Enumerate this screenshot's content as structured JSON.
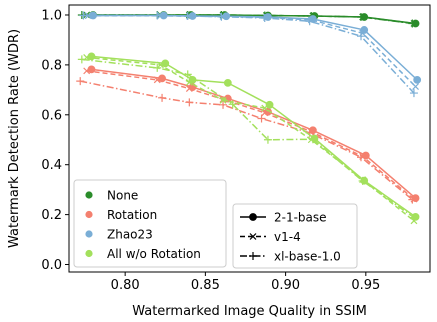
{
  "chart_data": {
    "type": "line",
    "xlabel": "Watermarked Image Quality in SSIM",
    "ylabel": "Watermark Detection Rate (WDR)",
    "xlim": [
      0.765,
      0.99
    ],
    "ylim": [
      -0.03,
      1.04
    ],
    "xticks": [
      0.8,
      0.85,
      0.9,
      0.95
    ],
    "xtick_labels": [
      "0.80",
      "0.85",
      "0.90",
      "0.95"
    ],
    "yticks": [
      0.0,
      0.2,
      0.4,
      0.6,
      0.8,
      1.0
    ],
    "ytick_labels": [
      "0.0",
      "0.2",
      "0.4",
      "0.6",
      "0.8",
      "1.0"
    ],
    "grid": false,
    "legend_placement": "lower-left",
    "method_legend": [
      {
        "label": "None",
        "color": "#2a8c2a"
      },
      {
        "label": "Rotation",
        "color": "#f4806f"
      },
      {
        "label": "Zhao23",
        "color": "#7aaed6"
      },
      {
        "label": "All w/o Rotation",
        "color": "#a3e05c"
      }
    ],
    "style_legend": [
      {
        "label": "2-1-base",
        "style": "solid",
        "marker": "dot"
      },
      {
        "label": "v1-4",
        "style": "dashed",
        "marker": "x"
      },
      {
        "label": "xl-base-1.0",
        "style": "dashdot",
        "marker": "plus"
      }
    ],
    "series": [
      {
        "method": "None",
        "model": "2-1-base",
        "color": "#2a8c2a",
        "x": [
          0.78,
          0.824,
          0.841,
          0.862,
          0.889,
          0.918,
          0.949,
          0.981
        ],
        "y": [
          1.0,
          1.0,
          1.0,
          1.0,
          0.998,
          0.996,
          0.992,
          0.966
        ]
      },
      {
        "method": "None",
        "model": "v1-4",
        "color": "#2a8c2a",
        "x": [
          0.776,
          0.822,
          0.84,
          0.861,
          0.888,
          0.917,
          0.948,
          0.98
        ],
        "y": [
          1.0,
          1.0,
          1.0,
          1.0,
          0.998,
          0.996,
          0.992,
          0.966
        ]
      },
      {
        "method": "None",
        "model": "xl-base-1.0",
        "color": "#2a8c2a",
        "x": [
          0.773,
          0.82,
          0.839,
          0.86,
          0.887,
          0.916,
          0.947,
          0.979
        ],
        "y": [
          1.0,
          1.0,
          1.0,
          1.0,
          0.998,
          0.996,
          0.992,
          0.966
        ]
      },
      {
        "method": "Rotation",
        "model": "2-1-base",
        "color": "#f4806f",
        "x": [
          0.779,
          0.823,
          0.842,
          0.864,
          0.889,
          0.917,
          0.95,
          0.981
        ],
        "y": [
          0.782,
          0.746,
          0.711,
          0.665,
          0.612,
          0.538,
          0.437,
          0.266
        ]
      },
      {
        "method": "Rotation",
        "model": "v1-4",
        "color": "#f4806f",
        "x": [
          0.776,
          0.82,
          0.84,
          0.861,
          0.887,
          0.916,
          0.948,
          0.98
        ],
        "y": [
          0.776,
          0.74,
          0.705,
          0.662,
          0.608,
          0.532,
          0.433,
          0.262
        ]
      },
      {
        "method": "Rotation",
        "model": "xl-base-1.0",
        "color": "#f4806f",
        "x": [
          0.772,
          0.823,
          0.84,
          0.861,
          0.885,
          0.915,
          0.947,
          0.979
        ],
        "y": [
          0.735,
          0.668,
          0.65,
          0.64,
          0.585,
          0.528,
          0.43,
          0.26
        ]
      },
      {
        "method": "Zhao23",
        "model": "2-1-base",
        "color": "#7aaed6",
        "x": [
          0.78,
          0.824,
          0.842,
          0.863,
          0.889,
          0.917,
          0.949,
          0.982
        ],
        "y": [
          0.998,
          0.998,
          0.996,
          0.995,
          0.992,
          0.984,
          0.94,
          0.74
        ]
      },
      {
        "method": "Zhao23",
        "model": "v1-4",
        "color": "#7aaed6",
        "x": [
          0.777,
          0.822,
          0.84,
          0.861,
          0.888,
          0.916,
          0.948,
          0.981
        ],
        "y": [
          0.997,
          0.997,
          0.995,
          0.994,
          0.99,
          0.98,
          0.927,
          0.713
        ]
      },
      {
        "method": "Zhao23",
        "model": "xl-base-1.0",
        "color": "#7aaed6",
        "x": [
          0.774,
          0.82,
          0.839,
          0.86,
          0.887,
          0.915,
          0.947,
          0.98
        ],
        "y": [
          0.998,
          0.998,
          0.996,
          0.993,
          0.988,
          0.975,
          0.915,
          0.687
        ]
      },
      {
        "method": "All w/o Rotation",
        "model": "2-1-base",
        "color": "#a3e05c",
        "x": [
          0.779,
          0.825,
          0.842,
          0.864,
          0.89,
          0.918,
          0.949,
          0.981
        ],
        "y": [
          0.834,
          0.806,
          0.74,
          0.728,
          0.64,
          0.505,
          0.336,
          0.191
        ]
      },
      {
        "method": "All w/o Rotation",
        "model": "v1-4",
        "color": "#a3e05c",
        "x": [
          0.776,
          0.822,
          0.84,
          0.861,
          0.887,
          0.916,
          0.948,
          0.98
        ],
        "y": [
          0.83,
          0.8,
          0.73,
          0.658,
          0.627,
          0.5,
          0.34,
          0.175
        ]
      },
      {
        "method": "All w/o Rotation",
        "model": "xl-base-1.0",
        "color": "#a3e05c",
        "x": [
          0.773,
          0.82,
          0.839,
          0.867,
          0.889,
          0.917,
          0.948,
          0.98
        ],
        "y": [
          0.822,
          0.788,
          0.762,
          0.642,
          0.5,
          0.502,
          0.335,
          0.188
        ]
      }
    ]
  }
}
